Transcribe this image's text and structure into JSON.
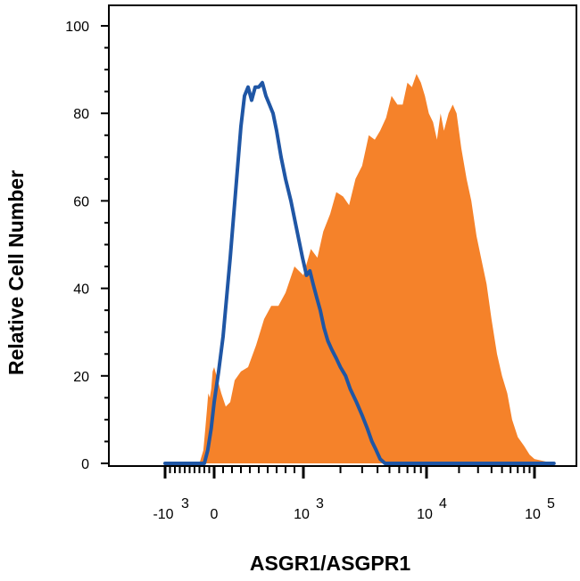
{
  "chart_data": {
    "type": "area",
    "xlabel": "ASGR1/ASGPR1",
    "ylabel": "Relative Cell Number",
    "x_scale": "biexponential",
    "ylim": [
      0,
      100
    ],
    "y_ticks": [
      "0",
      "20",
      "40",
      "60",
      "80",
      "100"
    ],
    "x_ticks": [
      {
        "base": "-10",
        "exp": "3",
        "value": -1000
      },
      {
        "base": "0",
        "exp": "",
        "value": 0
      },
      {
        "base": "10",
        "exp": "3",
        "value": 1000
      },
      {
        "base": "10",
        "exp": "4",
        "value": 10000
      },
      {
        "base": "10",
        "exp": "5",
        "value": 100000
      }
    ],
    "grid": false,
    "legend": "none",
    "series": [
      {
        "style": "filled",
        "color": "#F5822A",
        "points": [
          [
            -300,
            0
          ],
          [
            -220,
            3
          ],
          [
            -180,
            8
          ],
          [
            -150,
            12
          ],
          [
            -120,
            16
          ],
          [
            -90,
            15
          ],
          [
            -60,
            17
          ],
          [
            -30,
            21
          ],
          [
            0,
            22
          ],
          [
            40,
            19
          ],
          [
            80,
            16
          ],
          [
            130,
            13
          ],
          [
            180,
            14
          ],
          [
            230,
            19
          ],
          [
            300,
            21
          ],
          [
            380,
            22
          ],
          [
            470,
            27
          ],
          [
            560,
            33
          ],
          [
            640,
            36
          ],
          [
            720,
            36
          ],
          [
            800,
            39
          ],
          [
            900,
            45
          ],
          [
            1000,
            43
          ],
          [
            1150,
            49
          ],
          [
            1300,
            47
          ],
          [
            1450,
            53
          ],
          [
            1650,
            57
          ],
          [
            1850,
            62
          ],
          [
            2100,
            61
          ],
          [
            2350,
            59
          ],
          [
            2650,
            65
          ],
          [
            3000,
            68
          ],
          [
            3400,
            75
          ],
          [
            3800,
            74
          ],
          [
            4200,
            76
          ],
          [
            4700,
            79
          ],
          [
            5200,
            84
          ],
          [
            5800,
            82
          ],
          [
            6400,
            82
          ],
          [
            7000,
            87
          ],
          [
            7600,
            86
          ],
          [
            8300,
            89
          ],
          [
            9000,
            87
          ],
          [
            9700,
            84
          ],
          [
            10500,
            80
          ],
          [
            11500,
            78
          ],
          [
            12500,
            74
          ],
          [
            13500,
            80
          ],
          [
            14500,
            76
          ],
          [
            16000,
            80
          ],
          [
            17500,
            82
          ],
          [
            19000,
            80
          ],
          [
            21000,
            72
          ],
          [
            23500,
            65
          ],
          [
            26000,
            60
          ],
          [
            29000,
            52
          ],
          [
            32000,
            47
          ],
          [
            36000,
            41
          ],
          [
            40000,
            33
          ],
          [
            45000,
            25
          ],
          [
            50000,
            20
          ],
          [
            56000,
            16
          ],
          [
            62000,
            10
          ],
          [
            70000,
            6
          ],
          [
            80000,
            4
          ],
          [
            90000,
            2
          ],
          [
            100000,
            1
          ],
          [
            115000,
            0
          ]
        ]
      },
      {
        "style": "outline",
        "color": "#1F56A5",
        "points": [
          [
            -1000,
            0
          ],
          [
            -200,
            0
          ],
          [
            -130,
            3
          ],
          [
            -60,
            8
          ],
          [
            0,
            14
          ],
          [
            50,
            21
          ],
          [
            100,
            29
          ],
          [
            140,
            38
          ],
          [
            180,
            47
          ],
          [
            220,
            57
          ],
          [
            260,
            67
          ],
          [
            300,
            77
          ],
          [
            340,
            84
          ],
          [
            380,
            86
          ],
          [
            420,
            83
          ],
          [
            460,
            86
          ],
          [
            500,
            86
          ],
          [
            540,
            87
          ],
          [
            580,
            84
          ],
          [
            620,
            82
          ],
          [
            660,
            80
          ],
          [
            700,
            76
          ],
          [
            750,
            70
          ],
          [
            800,
            65
          ],
          [
            860,
            60
          ],
          [
            920,
            54
          ],
          [
            990,
            47
          ],
          [
            1060,
            43
          ],
          [
            1130,
            44
          ],
          [
            1200,
            41
          ],
          [
            1280,
            38
          ],
          [
            1370,
            35
          ],
          [
            1470,
            31
          ],
          [
            1580,
            28
          ],
          [
            1700,
            26
          ],
          [
            1850,
            24
          ],
          [
            2000,
            22
          ],
          [
            2200,
            20
          ],
          [
            2400,
            17
          ],
          [
            2700,
            14
          ],
          [
            3000,
            11
          ],
          [
            3300,
            8
          ],
          [
            3600,
            5
          ],
          [
            3900,
            3
          ],
          [
            4200,
            1
          ],
          [
            4600,
            0
          ],
          [
            115000,
            0
          ]
        ]
      }
    ]
  }
}
